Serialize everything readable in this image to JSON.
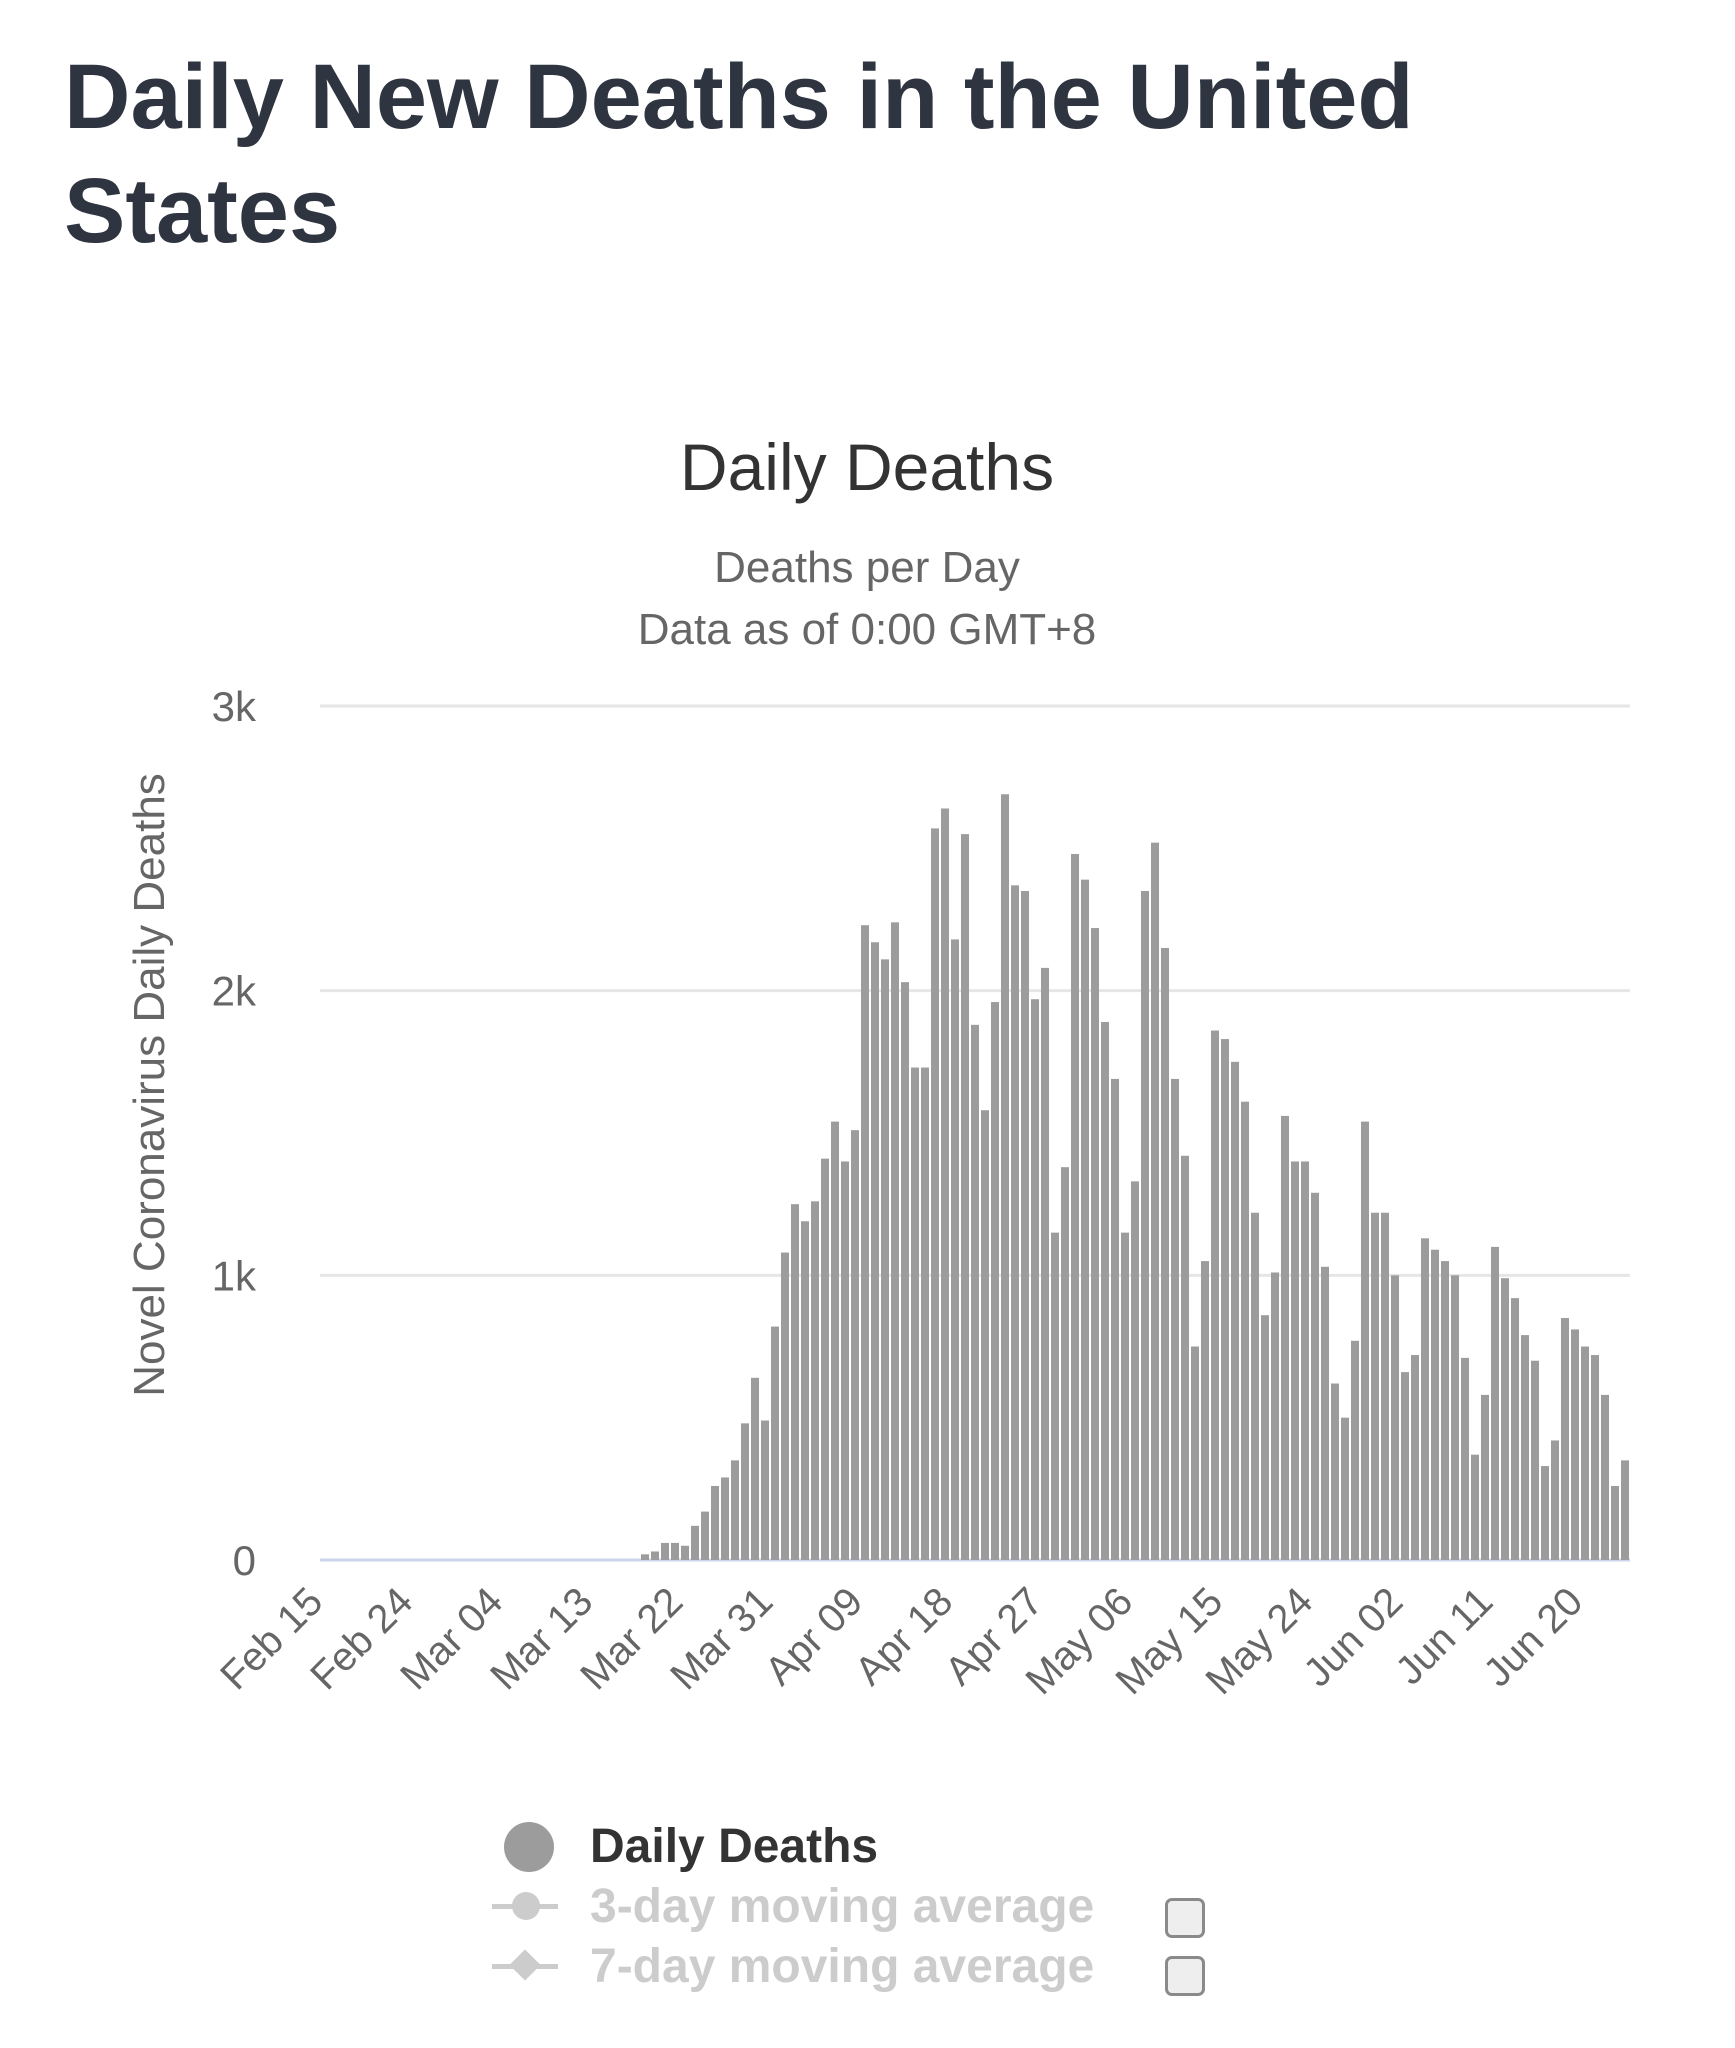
{
  "page": {
    "title": "Daily New Deaths in the United States"
  },
  "chart_data": {
    "type": "bar",
    "title": "Daily Deaths",
    "subtitle_lines": [
      "Deaths per Day",
      "Data as of 0:00 GMT+8"
    ],
    "ylabel": "Novel Coronavirus Daily Deaths",
    "xlabel": "",
    "ylim": [
      0,
      3000
    ],
    "y_ticks": [
      0,
      1000,
      2000,
      3000
    ],
    "y_tick_labels": [
      "0",
      "1k",
      "2k",
      "3k"
    ],
    "x_tick_labels": [
      "Feb 15",
      "Feb 24",
      "Mar 04",
      "Mar 13",
      "Mar 22",
      "Mar 31",
      "Apr 09",
      "Apr 18",
      "Apr 27",
      "May 06",
      "May 15",
      "May 24",
      "Jun 02",
      "Jun 11",
      "Jun 20"
    ],
    "x_tick_every": 9,
    "grid": true,
    "bar_color": "#9c9c9c",
    "gridline_color": "#e6e6e6",
    "baseline_color": "#ccd6eb",
    "series": [
      {
        "name": "Daily Deaths",
        "categories_start": "Feb 15",
        "values": [
          0,
          0,
          0,
          0,
          0,
          0,
          0,
          0,
          0,
          0,
          0,
          0,
          0,
          0,
          0,
          0,
          0,
          0,
          0,
          0,
          0,
          0,
          0,
          0,
          0,
          0,
          0,
          0,
          0,
          0,
          0,
          0,
          20,
          30,
          60,
          60,
          50,
          120,
          170,
          260,
          290,
          350,
          480,
          640,
          490,
          820,
          1080,
          1250,
          1190,
          1260,
          1410,
          1540,
          1400,
          1510,
          2230,
          2170,
          2110,
          2240,
          2030,
          1730,
          1730,
          2570,
          2640,
          2180,
          2550,
          1880,
          1580,
          1960,
          2690,
          2370,
          2350,
          1970,
          2080,
          1150,
          1380,
          2480,
          2390,
          2220,
          1890,
          1690,
          1150,
          1330,
          2350,
          2520,
          2150,
          1690,
          1420,
          750,
          1050,
          1860,
          1830,
          1750,
          1610,
          1220,
          860,
          1010,
          1560,
          1400,
          1400,
          1290,
          1030,
          620,
          500,
          770,
          1540,
          1220,
          1220,
          1000,
          660,
          720,
          1130,
          1090,
          1050,
          1000,
          710,
          370,
          580,
          1100,
          990,
          920,
          790,
          700,
          330,
          420,
          850,
          810,
          750,
          720,
          580,
          260,
          350
        ]
      }
    ],
    "legend": {
      "items": [
        {
          "label": "Daily Deaths",
          "active": true,
          "symbol": "dot"
        },
        {
          "label": "3-day moving average",
          "active": false,
          "symbol": "line-circle"
        },
        {
          "label": "7-day moving average",
          "active": false,
          "symbol": "line-diamond"
        }
      ],
      "position": "bottom"
    }
  }
}
